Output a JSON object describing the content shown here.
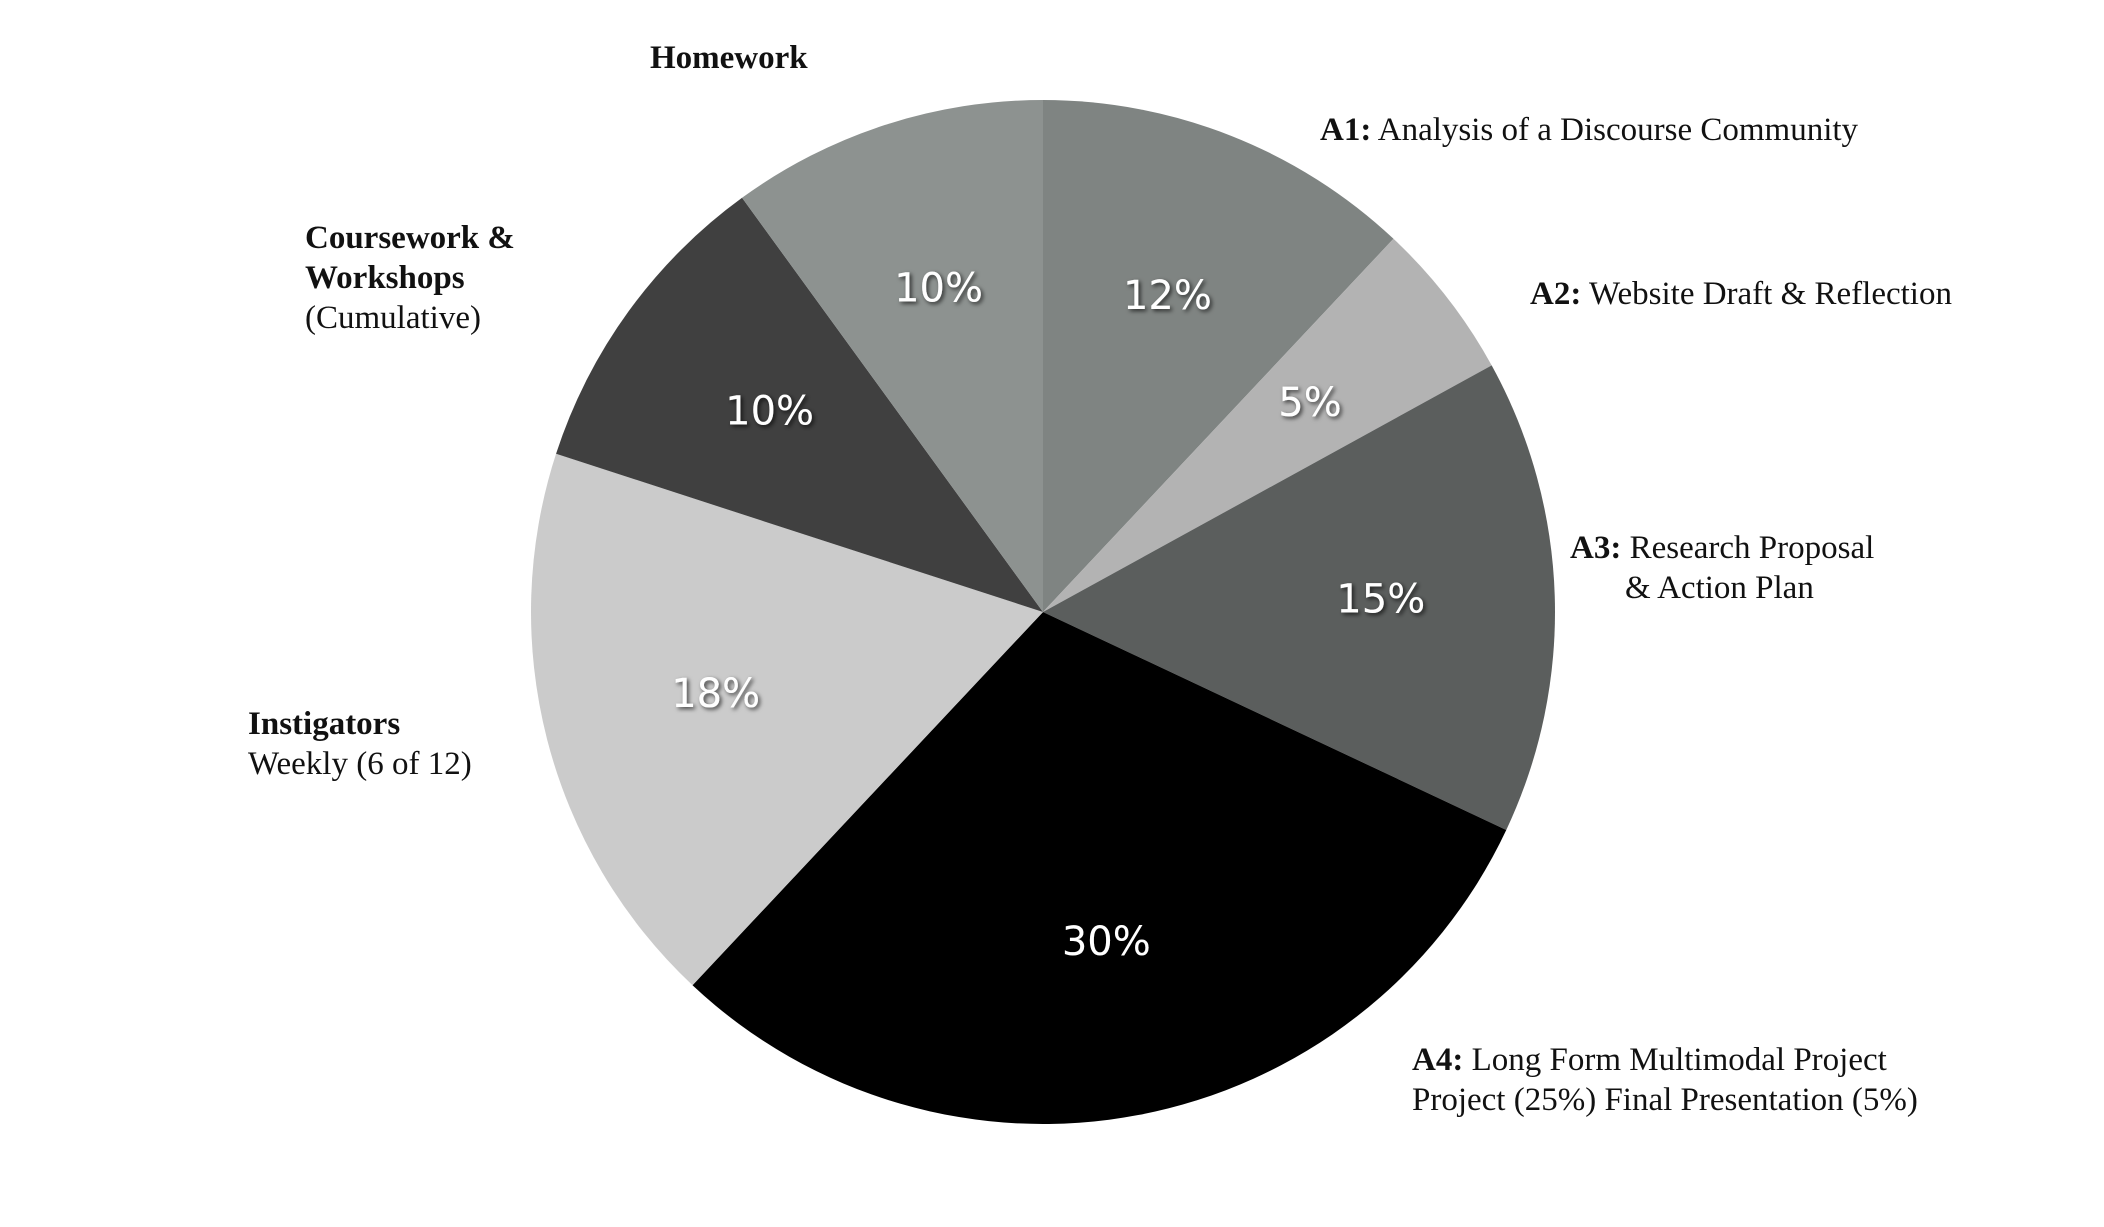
{
  "chart_data": {
    "type": "pie",
    "start_angle_deg": 0,
    "direction": "clockwise",
    "slices": [
      {
        "key": "a1",
        "value": 12,
        "label": "12%",
        "color": "#7f8482"
      },
      {
        "key": "a2",
        "value": 5,
        "label": "5%",
        "color": "#b3b3b3"
      },
      {
        "key": "a3",
        "value": 15,
        "label": "15%",
        "color": "#5b5e5d"
      },
      {
        "key": "a4",
        "value": 30,
        "label": "30%",
        "color": "#000000"
      },
      {
        "key": "instigators",
        "value": 18,
        "label": "18%",
        "color": "#cbcbcb"
      },
      {
        "key": "coursework",
        "value": 10,
        "label": "10%",
        "color": "#404040"
      },
      {
        "key": "homework",
        "value": 10,
        "label": "10%",
        "color": "#8d9290"
      }
    ],
    "categories": {
      "homework": {
        "bold": "Homework",
        "line1": "",
        "line2": ""
      },
      "a1": {
        "bold": "A1:",
        "line1": " Analysis of a Discourse Community",
        "line2": ""
      },
      "a2": {
        "bold": "A2:",
        "line1": " Website Draft & Reflection",
        "line2": ""
      },
      "a3": {
        "bold": "A3:",
        "line1": " Research Proposal",
        "line2": "& Action Plan"
      },
      "a4": {
        "bold": "A4:",
        "line1": " Long Form Multimodal Project",
        "line2": "Project (25%) Final Presentation (5%)"
      },
      "coursework": {
        "bold": "Coursework &",
        "bold2": "Workshops",
        "line2": "(Cumulative)"
      },
      "instigators": {
        "bold": "Instigators",
        "line2": "Weekly (6 of 12)"
      }
    }
  }
}
